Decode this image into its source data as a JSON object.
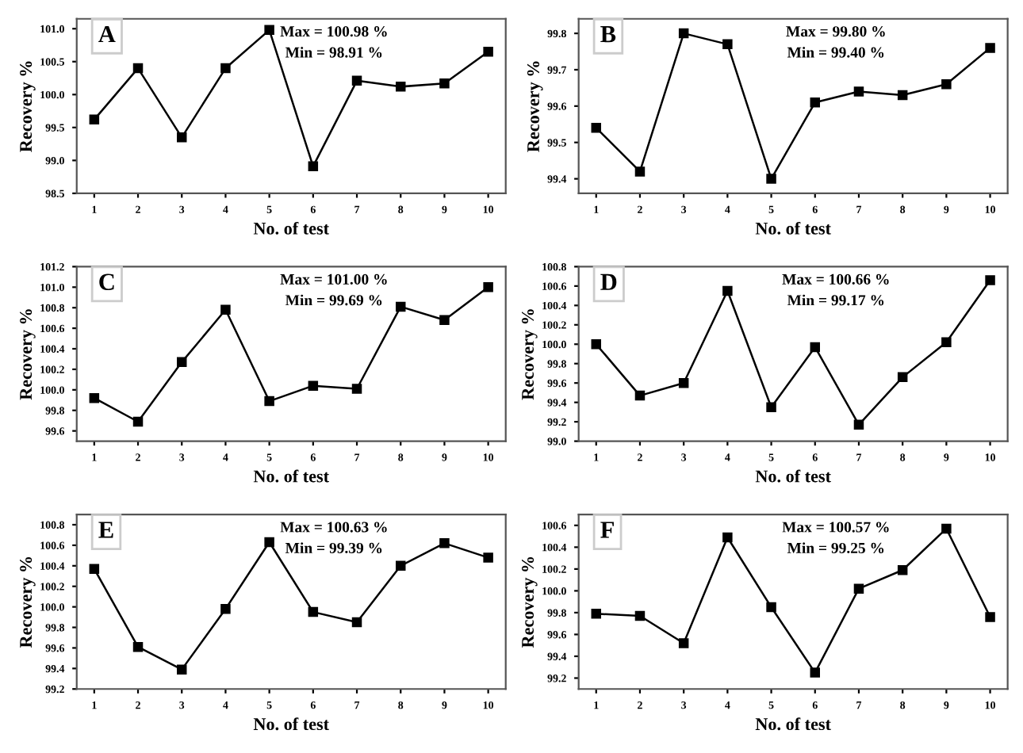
{
  "chart_data": [
    {
      "type": "line",
      "title": "A",
      "xlabel": "No. of test",
      "ylabel": "Recovery %",
      "annotations": [
        "Max = 100.98 %",
        "Min = 98.91 %"
      ],
      "x": [
        1,
        2,
        3,
        4,
        5,
        6,
        7,
        8,
        9,
        10
      ],
      "xlim": [
        0.6,
        10.4
      ],
      "xticks": [
        1,
        2,
        3,
        4,
        5,
        6,
        7,
        8,
        9,
        10
      ],
      "ylim": [
        98.5,
        101.15
      ],
      "yticks": [
        98.5,
        {
          "value": 99,
          "label": "99.0"
        },
        99.5,
        {
          "value": 100,
          "label": "100.0"
        },
        100.5,
        {
          "value": 101,
          "label": "101.0"
        }
      ],
      "marker": "square",
      "series": [
        {
          "color": "#000000",
          "values": [
            99.62,
            100.4,
            99.35,
            100.4,
            100.98,
            98.91,
            100.21,
            100.12,
            100.17,
            100.65
          ]
        }
      ]
    },
    {
      "type": "line",
      "title": "B",
      "xlabel": "No. of test",
      "ylabel": "Recovery %",
      "annotations": [
        "Max = 99.80 %",
        "Min = 99.40 %"
      ],
      "x": [
        1,
        2,
        3,
        4,
        5,
        6,
        7,
        8,
        9,
        10
      ],
      "xlim": [
        0.6,
        10.4
      ],
      "xticks": [
        1,
        2,
        3,
        4,
        5,
        6,
        7,
        8,
        9,
        10
      ],
      "ylim": [
        99.36,
        99.84
      ],
      "yticks": [
        99.4,
        99.5,
        99.6,
        99.7,
        99.8
      ],
      "marker": "square",
      "series": [
        {
          "color": "#000000",
          "values": [
            99.54,
            99.42,
            99.8,
            99.77,
            99.4,
            99.61,
            99.64,
            99.63,
            99.66,
            99.76
          ]
        }
      ]
    },
    {
      "type": "line",
      "title": "C",
      "xlabel": "No. of test",
      "ylabel": "Recovery %",
      "annotations": [
        "Max = 101.00 %",
        "Min = 99.69 %"
      ],
      "x": [
        1,
        2,
        3,
        4,
        5,
        6,
        7,
        8,
        9,
        10
      ],
      "xlim": [
        0.6,
        10.4
      ],
      "xticks": [
        1,
        2,
        3,
        4,
        5,
        6,
        7,
        8,
        9,
        10
      ],
      "ylim": [
        99.5,
        101.2
      ],
      "yticks": [
        99.6,
        99.8,
        {
          "value": 100,
          "label": "100.0"
        },
        100.2,
        100.4,
        100.6,
        100.8,
        {
          "value": 101,
          "label": "101.0"
        },
        101.2
      ],
      "marker": "square",
      "series": [
        {
          "color": "#000000",
          "values": [
            99.92,
            99.69,
            100.27,
            100.78,
            99.89,
            100.04,
            100.01,
            100.81,
            100.68,
            101.0
          ]
        }
      ]
    },
    {
      "type": "line",
      "title": "D",
      "xlabel": "No. of test",
      "ylabel": "Recovery %",
      "annotations": [
        "Max = 100.66 %",
        "Min = 99.17 %"
      ],
      "x": [
        1,
        2,
        3,
        4,
        5,
        6,
        7,
        8,
        9,
        10
      ],
      "xlim": [
        0.6,
        10.4
      ],
      "xticks": [
        1,
        2,
        3,
        4,
        5,
        6,
        7,
        8,
        9,
        10
      ],
      "ylim": [
        99.0,
        100.8
      ],
      "yticks": [
        {
          "value": 99,
          "label": "99.0"
        },
        99.2,
        99.4,
        99.6,
        99.8,
        {
          "value": 100,
          "label": "100.0"
        },
        100.2,
        100.4,
        100.6,
        100.8
      ],
      "marker": "square",
      "series": [
        {
          "color": "#000000",
          "values": [
            100.0,
            99.47,
            99.6,
            100.55,
            99.35,
            99.97,
            99.17,
            99.66,
            100.02,
            100.66
          ]
        }
      ]
    },
    {
      "type": "line",
      "title": "E",
      "xlabel": "No. of test",
      "ylabel": "Recovery %",
      "annotations": [
        "Max = 100.63 %",
        "Min = 99.39 %"
      ],
      "x": [
        1,
        2,
        3,
        4,
        5,
        6,
        7,
        8,
        9,
        10
      ],
      "xlim": [
        0.6,
        10.4
      ],
      "xticks": [
        1,
        2,
        3,
        4,
        5,
        6,
        7,
        8,
        9,
        10
      ],
      "ylim": [
        99.2,
        100.9
      ],
      "yticks": [
        99.2,
        99.4,
        99.6,
        99.8,
        {
          "value": 100,
          "label": "100.0"
        },
        100.2,
        100.4,
        100.6,
        100.8
      ],
      "marker": "square",
      "series": [
        {
          "color": "#000000",
          "values": [
            100.37,
            99.61,
            99.39,
            99.98,
            100.63,
            99.95,
            99.85,
            100.4,
            100.62,
            100.48
          ]
        }
      ]
    },
    {
      "type": "line",
      "title": "F",
      "xlabel": "No. of test",
      "ylabel": "Recovery %",
      "annotations": [
        "Max = 100.57 %",
        "Min = 99.25 %"
      ],
      "x": [
        1,
        2,
        3,
        4,
        5,
        6,
        7,
        8,
        9,
        10
      ],
      "xlim": [
        0.6,
        10.4
      ],
      "xticks": [
        1,
        2,
        3,
        4,
        5,
        6,
        7,
        8,
        9,
        10
      ],
      "ylim": [
        99.1,
        100.7
      ],
      "yticks": [
        99.2,
        99.4,
        99.6,
        99.8,
        {
          "value": 100,
          "label": "100.0"
        },
        100.2,
        100.4,
        100.6
      ],
      "marker": "square",
      "series": [
        {
          "color": "#000000",
          "values": [
            99.79,
            99.77,
            99.52,
            100.49,
            99.85,
            99.25,
            100.02,
            100.19,
            100.57,
            99.76
          ]
        }
      ]
    }
  ]
}
